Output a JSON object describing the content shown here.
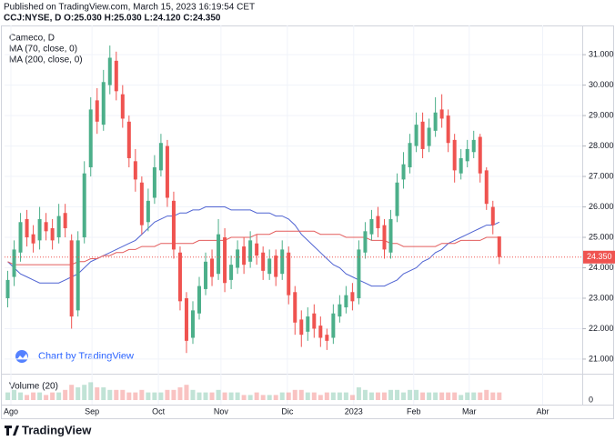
{
  "header": {
    "published": "Published on TradingView.com, March 15, 2023 16:19:54 CET",
    "symbol_line": "CCJ:NYSE, D O:25.030 H:25.030 L:24.120 C:24.350"
  },
  "chart_data": {
    "type": "candlestick",
    "title": "Cameco, D",
    "open": [
      23.0,
      23.7,
      24.5,
      25.6,
      25.1,
      24.9,
      25.5,
      25.3,
      25.0,
      25.8,
      24.9,
      22.6,
      25.0,
      27.3,
      29.5,
      28.7,
      30.0,
      30.8,
      29.7,
      28.8,
      27.5,
      26.8,
      25.5,
      26.3,
      27.2,
      28.0,
      26.2,
      24.5,
      23.0,
      21.7,
      22.5,
      23.3,
      24.3,
      23.8,
      25.0,
      23.6,
      24.0,
      24.7,
      24.2,
      24.8,
      24.5,
      23.8,
      24.4,
      23.8,
      24.5,
      23.2,
      22.3,
      21.9,
      22.5,
      22.1,
      21.8,
      21.7,
      22.4,
      22.7,
      23.2,
      23.0,
      24.5,
      25.1,
      25.7,
      25.4,
      24.5,
      25.7,
      26.9,
      27.3,
      28.0,
      28.8,
      28.0,
      28.5,
      29.2,
      29.0,
      28.2,
      27.1,
      27.5,
      27.8,
      28.3,
      27.2,
      26.0,
      25.03
    ],
    "high": [
      23.9,
      24.9,
      25.8,
      25.9,
      25.4,
      26.0,
      25.8,
      25.6,
      26.1,
      26.1,
      25.1,
      25.2,
      27.5,
      29.6,
      29.9,
      30.5,
      31.3,
      31.1,
      30.0,
      29.0,
      27.9,
      27.0,
      26.6,
      27.7,
      28.4,
      28.2,
      26.5,
      24.7,
      23.2,
      22.9,
      23.7,
      24.5,
      24.6,
      25.6,
      25.3,
      24.4,
      24.9,
      25.0,
      25.2,
      25.1,
      24.7,
      24.6,
      24.6,
      24.9,
      24.7,
      23.4,
      22.6,
      22.7,
      22.8,
      22.4,
      22.0,
      22.8,
      23.1,
      23.4,
      23.5,
      24.9,
      25.5,
      25.9,
      26.0,
      25.6,
      25.9,
      27.1,
      27.8,
      28.4,
      29.1,
      29.1,
      28.9,
      29.6,
      29.7,
      29.2,
      28.4,
      27.9,
      28.2,
      28.5,
      28.4,
      27.3,
      26.2,
      25.03
    ],
    "low": [
      22.7,
      23.4,
      24.2,
      24.7,
      24.5,
      24.6,
      24.9,
      24.6,
      24.8,
      25.0,
      22.0,
      22.4,
      24.8,
      27.0,
      28.4,
      28.5,
      29.7,
      29.5,
      28.6,
      27.3,
      26.5,
      25.1,
      25.2,
      26.1,
      27.0,
      26.0,
      24.3,
      22.6,
      21.2,
      21.5,
      22.3,
      23.1,
      23.4,
      23.6,
      23.2,
      23.3,
      23.8,
      23.8,
      24.0,
      24.1,
      23.6,
      23.6,
      23.4,
      23.6,
      22.8,
      21.8,
      21.4,
      21.6,
      21.7,
      21.4,
      21.3,
      21.5,
      22.2,
      22.5,
      22.6,
      22.8,
      24.3,
      24.9,
      25.0,
      24.3,
      24.3,
      25.5,
      26.6,
      27.1,
      27.8,
      27.6,
      27.8,
      28.3,
      28.6,
      27.8,
      26.8,
      26.9,
      27.3,
      27.6,
      26.8,
      25.9,
      25.1,
      24.12
    ],
    "close": [
      23.6,
      24.6,
      25.5,
      25.0,
      24.8,
      25.6,
      25.2,
      24.9,
      25.7,
      25.3,
      22.4,
      24.9,
      27.1,
      29.2,
      28.8,
      30.1,
      30.9,
      29.8,
      28.9,
      27.6,
      26.9,
      25.4,
      26.2,
      27.3,
      28.1,
      26.3,
      24.6,
      22.9,
      21.6,
      22.6,
      23.4,
      24.2,
      23.7,
      25.1,
      23.5,
      24.1,
      24.6,
      24.1,
      24.9,
      24.4,
      23.9,
      24.3,
      23.7,
      24.6,
      23.1,
      22.2,
      21.8,
      22.4,
      22.0,
      21.7,
      21.6,
      22.5,
      22.8,
      23.1,
      22.9,
      24.6,
      25.2,
      25.6,
      25.3,
      24.6,
      25.6,
      26.8,
      27.4,
      28.1,
      28.7,
      27.9,
      28.6,
      29.1,
      28.9,
      28.1,
      27.2,
      27.6,
      27.9,
      28.2,
      27.1,
      26.1,
      25.4,
      24.35
    ],
    "up_color": "#4caf8a",
    "down_color": "#ef5350",
    "series": [
      {
        "name": "MA (70, close, 0)",
        "color": "#4f63d2",
        "values": [
          24.2,
          24.0,
          23.8,
          23.7,
          23.6,
          23.5,
          23.5,
          23.5,
          23.5,
          23.6,
          23.7,
          23.8,
          24.0,
          24.2,
          24.3,
          24.4,
          24.5,
          24.6,
          24.7,
          24.8,
          24.9,
          25.1,
          25.3,
          25.5,
          25.6,
          25.7,
          25.7,
          25.8,
          25.8,
          25.9,
          25.9,
          26.0,
          26.0,
          26.0,
          26.0,
          25.9,
          25.9,
          25.9,
          25.9,
          25.8,
          25.8,
          25.8,
          25.7,
          25.7,
          25.6,
          25.4,
          25.1,
          24.9,
          24.7,
          24.5,
          24.3,
          24.1,
          24.0,
          23.8,
          23.7,
          23.6,
          23.5,
          23.4,
          23.4,
          23.4,
          23.5,
          23.6,
          23.8,
          23.9,
          24.0,
          24.2,
          24.3,
          24.5,
          24.6,
          24.8,
          24.9,
          25.0,
          25.1,
          25.2,
          25.3,
          25.4,
          25.4,
          25.5
        ]
      },
      {
        "name": "MA (200, close, 0)",
        "color": "#e35d5d",
        "values": [
          24.2,
          24.1,
          24.1,
          24.1,
          24.1,
          24.1,
          24.1,
          24.1,
          24.1,
          24.1,
          24.1,
          24.2,
          24.2,
          24.3,
          24.3,
          24.4,
          24.4,
          24.5,
          24.5,
          24.6,
          24.6,
          24.7,
          24.7,
          24.7,
          24.8,
          24.8,
          24.8,
          24.8,
          24.8,
          24.8,
          24.9,
          24.9,
          24.9,
          24.9,
          24.9,
          25.0,
          25.0,
          25.0,
          25.0,
          25.1,
          25.1,
          25.1,
          25.2,
          25.2,
          25.2,
          25.2,
          25.2,
          25.2,
          25.2,
          25.1,
          25.1,
          25.1,
          25.1,
          25.0,
          25.0,
          25.0,
          25.0,
          24.9,
          24.9,
          24.9,
          24.8,
          24.8,
          24.7,
          24.7,
          24.7,
          24.7,
          24.7,
          24.7,
          24.8,
          24.8,
          24.8,
          24.9,
          24.9,
          24.9,
          24.9,
          25.0,
          25.0,
          25.0
        ]
      }
    ],
    "volume_label": "Volume (20)",
    "volume": [
      3,
      4,
      3,
      2,
      3,
      3,
      2,
      3,
      3,
      4,
      6,
      5,
      6,
      7,
      5,
      5,
      4,
      4,
      4,
      3,
      3,
      4,
      3,
      3,
      3,
      4,
      4,
      5,
      6,
      4,
      3,
      3,
      3,
      4,
      3,
      3,
      3,
      2,
      2,
      3,
      2,
      2,
      2,
      3,
      3,
      4,
      4,
      3,
      3,
      2,
      3,
      3,
      3,
      3,
      2,
      5,
      4,
      3,
      3,
      3,
      4,
      4,
      3,
      4,
      4,
      3,
      3,
      3,
      3,
      3,
      3,
      2,
      3,
      3,
      3,
      4,
      3,
      3
    ],
    "vlim": [
      0,
      10
    ],
    "vticks": [
      0
    ],
    "xlim": [
      -0.5,
      90
    ],
    "xticks": [
      {
        "value": 0.5,
        "label": "Ago"
      },
      {
        "value": 13.2,
        "label": "Sep"
      },
      {
        "value": 23.6,
        "label": "Oct"
      },
      {
        "value": 33.4,
        "label": "Nov"
      },
      {
        "value": 43.8,
        "label": "Dic"
      },
      {
        "value": 54.2,
        "label": "2023"
      },
      {
        "value": 63.6,
        "label": "Feb"
      },
      {
        "value": 72.3,
        "label": "Mar"
      },
      {
        "value": 83.8,
        "label": "Abr"
      }
    ],
    "ylim": [
      20.55,
      31.96
    ],
    "yticks": [
      {
        "value": 21,
        "label": "21.000"
      },
      {
        "value": 22,
        "label": "22.000"
      },
      {
        "value": 23,
        "label": "23.000"
      },
      {
        "value": 24,
        "label": "24.000"
      },
      {
        "value": 25,
        "label": "25.000"
      },
      {
        "value": 26,
        "label": "26.000"
      },
      {
        "value": 27,
        "label": "27.000"
      },
      {
        "value": 28,
        "label": "28.000"
      },
      {
        "value": 29,
        "label": "29.000"
      },
      {
        "value": 30,
        "label": "30.000"
      },
      {
        "value": 31,
        "label": "31.000"
      }
    ],
    "last_price": {
      "value": 24.35,
      "label": "24.350"
    },
    "grid": true,
    "watermark": "Chart by TradingView",
    "brand": "TradingView"
  }
}
